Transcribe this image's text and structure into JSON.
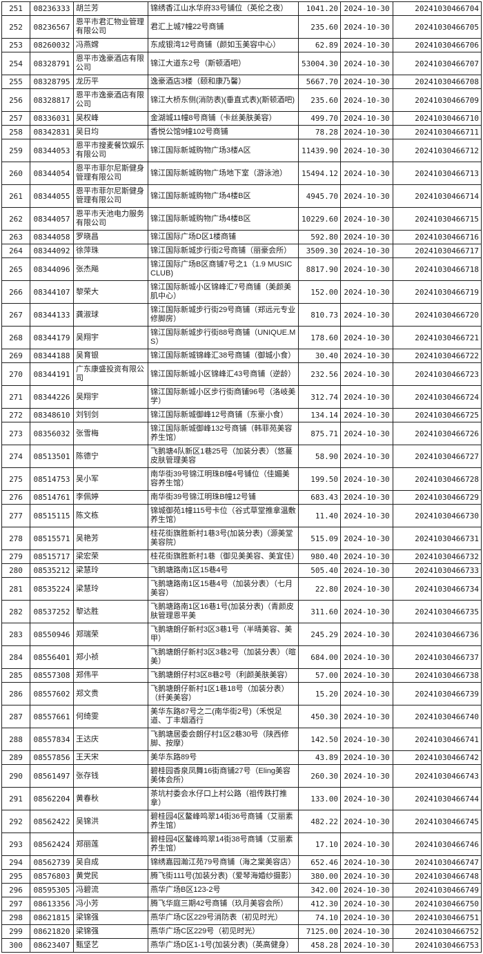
{
  "table": {
    "fields": [
      "row_no",
      "account_no",
      "customer_name",
      "address",
      "amount",
      "date",
      "receipt_no"
    ],
    "rows": [
      [
        "251",
        "08236333",
        "胡兰芳",
        "锦绣香江山水华府33号铺位（英伦之夜）",
        "1041.20",
        "2024-10-30",
        "20241030466704"
      ],
      [
        "252",
        "08236567",
        "恩平市君汇物业管理有限公司",
        "君汇上城7幢22号商铺",
        "235.60",
        "2024-10-30",
        "20241030466705"
      ],
      [
        "253",
        "08260032",
        "冯燕嫦",
        "东成银湾12号商铺（颜如玉美容中心）",
        "62.89",
        "2024-10-30",
        "20241030466706"
      ],
      [
        "254",
        "08328791",
        "恩平市逸豪酒店有限公司",
        "锦江大道东2号（斯顿酒吧）",
        "53004.30",
        "2024-10-30",
        "20241030466707"
      ],
      [
        "255",
        "08328795",
        "龙历平",
        "逸豪酒店3楼（颐和康乃馨）",
        "5667.70",
        "2024-10-30",
        "20241030466708"
      ],
      [
        "256",
        "08328817",
        "恩平市逸豪酒店有限公司",
        "锦江大桥东侧(消防表)(垂直式表)(斯顿酒吧)",
        "235.60",
        "2024-10-30",
        "20241030466709"
      ],
      [
        "257",
        "08336031",
        "吴权峰",
        "金湖城11幢8号商铺（卡丝美肤美容）",
        "499.70",
        "2024-10-30",
        "20241030466710"
      ],
      [
        "258",
        "08342831",
        "吴日均",
        "香悦公馆9幢102号商铺",
        "78.28",
        "2024-10-30",
        "20241030466711"
      ],
      [
        "259",
        "08344053",
        "恩平市搜麦餐饮娱乐有限公司",
        "锦江国际新城购物广场3楼A区",
        "11439.90",
        "2024-10-30",
        "20241030466712"
      ],
      [
        "260",
        "08344054",
        "恩平市菲尔尼斯健身管理有限公司",
        "锦江国际新城购物广场地下室（游泳池）",
        "15494.12",
        "2024-10-30",
        "20241030466713"
      ],
      [
        "261",
        "08344055",
        "恩平市菲尔尼斯健身管理有限公司",
        "锦江国际新城购物广场4楼B区",
        "4945.70",
        "2024-10-30",
        "20241030466714"
      ],
      [
        "262",
        "08344057",
        "恩平市天池电力服务有限公司",
        "锦江国际新城购物广场4楼B区",
        "10229.60",
        "2024-10-30",
        "20241030466715"
      ],
      [
        "263",
        "08344058",
        "罗晓昌",
        "锦江国际广场D区1楼商铺",
        "592.80",
        "2024-10-30",
        "20241030466716"
      ],
      [
        "264",
        "08344092",
        "徐萍珠",
        "锦江国际新城步行街2号商铺（丽豪会所）",
        "3509.30",
        "2024-10-30",
        "20241030466717"
      ],
      [
        "265",
        "08344096",
        "张杰飚",
        "锦江国际广场B区商铺7号之1（1.9 MUSIC CLUB)",
        "8817.90",
        "2024-10-30",
        "20241030466718"
      ],
      [
        "266",
        "08344107",
        "黎荣大",
        "锦江国际新城小区锦峰汇7号商铺（美颜美肌中心）",
        "152.00",
        "2024-10-30",
        "20241030466719"
      ],
      [
        "267",
        "08344133",
        "龚淑球",
        "锦江国际新城步行街29号商铺（郑远元专业修脚房）",
        "810.73",
        "2024-10-30",
        "20241030466720"
      ],
      [
        "268",
        "08344179",
        "吴翔宇",
        "锦江国际新城步行街88号商铺（UNIQUE.MS）",
        "178.60",
        "2024-10-30",
        "20241030466721"
      ],
      [
        "269",
        "08344188",
        "吴育银",
        "锦江国际新城锦峰汇38号商铺（御城小食）",
        "30.40",
        "2024-10-30",
        "20241030466722"
      ],
      [
        "270",
        "08344191",
        "广东康盛投资有限公司",
        "锦江国际新城小区锦峰汇43号商铺（逆龄）",
        "232.56",
        "2024-10-30",
        "20241030466723"
      ],
      [
        "271",
        "08344226",
        "吴翔宇",
        "锦江国际新城小区步行街商铺96号（洛岐美学）",
        "312.74",
        "2024-10-30",
        "20241030466724"
      ],
      [
        "272",
        "08348610",
        "刘钊剑",
        "锦江国际新城御峰12号商铺（东豪小食）",
        "134.14",
        "2024-10-30",
        "20241030466725"
      ],
      [
        "273",
        "08356032",
        "张雪梅",
        "锦江国际新城御峰132号商铺（韩菲苑美容养生馆）",
        "875.71",
        "2024-10-30",
        "20241030466726"
      ],
      [
        "274",
        "08513501",
        "陈德宁",
        "飞鹅塘4队新区1巷25号（加装分表）（悠蔓皮肤管理美容",
        "58.90",
        "2024-10-30",
        "20241030466727"
      ],
      [
        "275",
        "08514753",
        "吴小军",
        "南华街39号锦江明珠B幢4号铺位（佳媚美容养生馆）",
        "199.50",
        "2024-10-30",
        "20241030466728"
      ],
      [
        "276",
        "08514761",
        "李佩婷",
        "南华街39号锦江明珠B幢12号铺",
        "683.43",
        "2024-10-30",
        "20241030466729"
      ],
      [
        "277",
        "08515115",
        "陈文栋",
        "锦城御苑1幢115号卡位（谷式草堂推拿温敷养生馆）",
        "11.40",
        "2024-10-30",
        "20241030466730"
      ],
      [
        "278",
        "08515571",
        "吴艳芳",
        "桂花街旗胜新村1巷3号(加装分表)（源美堂美容院）",
        "515.09",
        "2024-10-30",
        "20241030466731"
      ],
      [
        "279",
        "08515717",
        "梁宏荣",
        "桂花街旗胜新村1巷（御见美美容、美宜佳）",
        "980.40",
        "2024-10-30",
        "20241030466732"
      ],
      [
        "280",
        "08535212",
        "梁慧玲",
        "飞鹅塘路南1区15巷4号",
        "505.40",
        "2024-10-30",
        "20241030466733"
      ],
      [
        "281",
        "08535224",
        "梁慧玲",
        "飞鹅塘路南1区15巷4号（加装分表）（七月美容）",
        "22.80",
        "2024-10-30",
        "20241030466734"
      ],
      [
        "282",
        "08537252",
        "黎达胜",
        "飞鹅塘路南1区16巷1号(加装分表)（青颜皮肤管理恩平美",
        "311.60",
        "2024-10-30",
        "20241030466735"
      ],
      [
        "283",
        "08550946",
        "郑瑞荣",
        "飞鹅塘朗仔新村3区3巷1号（半晴美容、美甲）",
        "245.29",
        "2024-10-30",
        "20241030466736"
      ],
      [
        "284",
        "08556401",
        "郑小祯",
        "飞鹅塘朗仔新村3区3巷2号（加装分表）（暄美）",
        "684.00",
        "2024-10-30",
        "20241030466737"
      ],
      [
        "285",
        "08557308",
        "郑伟平",
        "飞鹅塘朗仔村3区8巷2号（利颜美肤美容）",
        "57.00",
        "2024-10-30",
        "20241030466738"
      ],
      [
        "286",
        "08557602",
        "郑文贵",
        "飞鹅塘朗仔新村1区1巷18号（加装分表）（纤美美容）",
        "15.20",
        "2024-10-30",
        "20241030466739"
      ],
      [
        "287",
        "08557661",
        "何绮雯",
        "美华东路87号之二(南华街2号)（禾悦足道、丁丰烟酒行",
        "450.30",
        "2024-10-30",
        "20241030466740"
      ],
      [
        "288",
        "08557834",
        "王达庆",
        "飞鹅塘居委会朗仔村1区2巷30号（陕西修脚、按摩）",
        "142.50",
        "2024-10-30",
        "20241030466741"
      ],
      [
        "289",
        "08557856",
        "王天宋",
        "美华东路89号",
        "43.89",
        "2024-10-30",
        "20241030466742"
      ],
      [
        "290",
        "08561497",
        "张存钱",
        "碧桂园香泉凤舞16街商铺27号（Eling美容美体会所）",
        "260.30",
        "2024-10-30",
        "20241030466743"
      ],
      [
        "291",
        "08562204",
        "黄春秋",
        "茶坑村委会水仔口上村公路（祖传跌打推拿）",
        "133.00",
        "2024-10-30",
        "20241030466744"
      ],
      [
        "292",
        "08562422",
        "吴锦洪",
        "碧桂园4区鳌峰鸣翠14街36号商铺（艾丽素养生馆）",
        "482.22",
        "2024-10-30",
        "20241030466745"
      ],
      [
        "293",
        "08562424",
        "郑丽莲",
        "碧桂园4区鳌峰鸣翠14街38号商铺（艾丽素养生馆）",
        "17.10",
        "2024-10-30",
        "20241030466746"
      ],
      [
        "294",
        "08562739",
        "吴自成",
        "锦绣嘉园瀚江苑79号商铺（海之棠美容店）",
        "652.46",
        "2024-10-30",
        "20241030466747"
      ],
      [
        "295",
        "08576803",
        "黄党民",
        "腾飞街111号(加装分表)（爱琴海婚纱摄影）",
        "380.00",
        "2024-10-30",
        "20241030466748"
      ],
      [
        "296",
        "08595305",
        "冯碧流",
        "燕华广场B区123-2号",
        "342.00",
        "2024-10-30",
        "20241030466749"
      ],
      [
        "297",
        "08613356",
        "冯小芳",
        "腾飞华庭三期42号商铺（玖月美容会所）",
        "412.30",
        "2024-10-30",
        "20241030466750"
      ],
      [
        "298",
        "08621815",
        "梁锦强",
        "燕华广场C区229号消防表（初见时光）",
        "74.10",
        "2024-10-30",
        "20241030466751"
      ],
      [
        "299",
        "08621820",
        "梁锦强",
        "燕华广场C区229号（初见时光）",
        "7125.00",
        "2024-10-30",
        "20241030466752"
      ],
      [
        "300",
        "08623407",
        "甄坚艺",
        "燕华广场D区1-1号(加装分表)（英高健身）",
        "458.28",
        "2024-10-30",
        "20241030466753"
      ]
    ]
  }
}
